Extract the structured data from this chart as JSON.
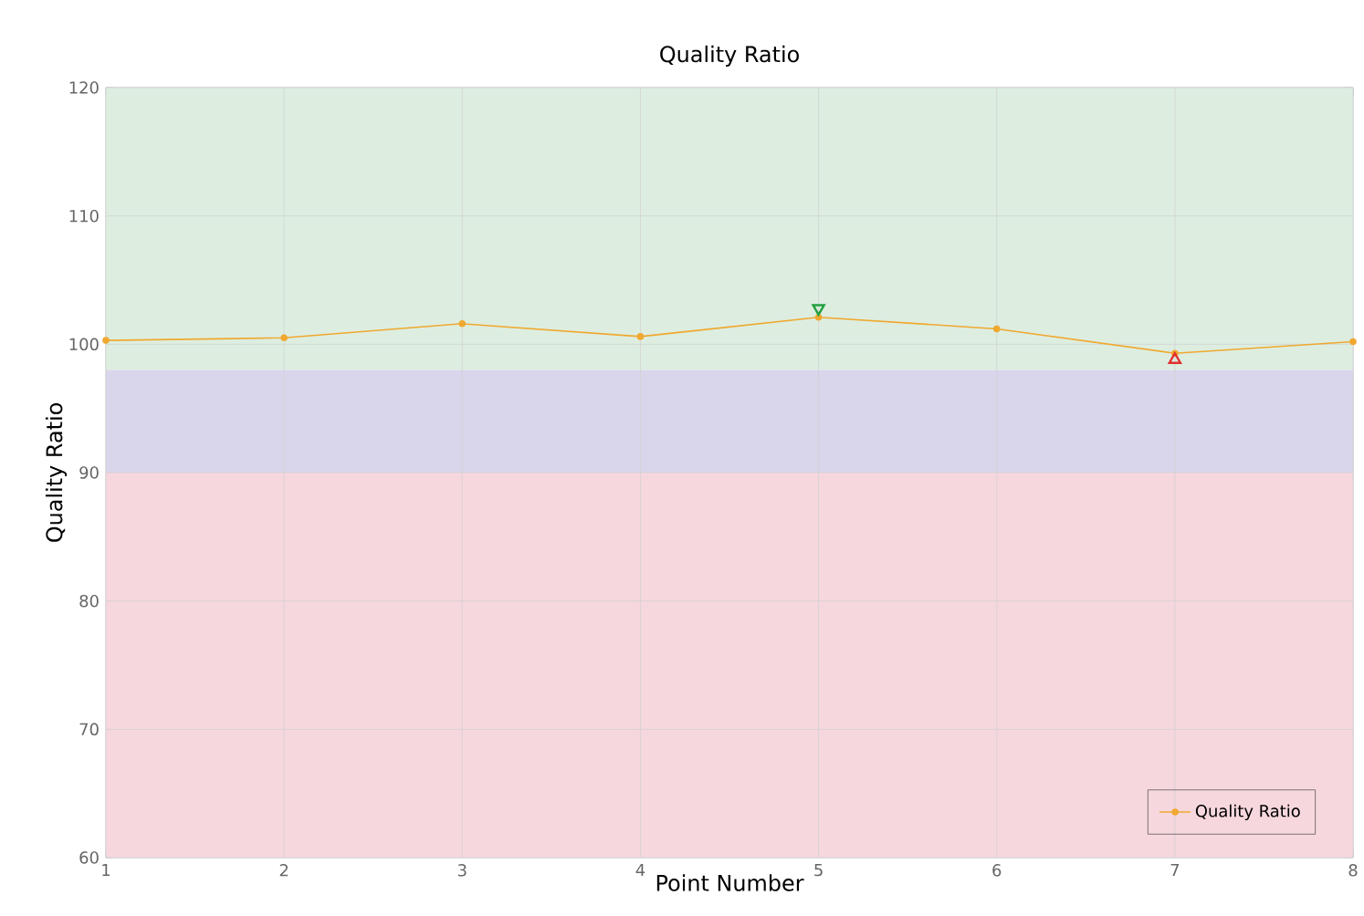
{
  "chart_data": {
    "type": "line",
    "title": "Quality Ratio",
    "xlabel": "Point Number",
    "ylabel": "Quality Ratio",
    "x": [
      1,
      2,
      3,
      4,
      5,
      6,
      7,
      8
    ],
    "series": [
      {
        "name": "Quality Ratio",
        "color": "#f0a830",
        "values": [
          100.3,
          100.5,
          101.6,
          100.6,
          102.1,
          101.2,
          99.3,
          100.2
        ]
      },
      {
        "type": "scatter",
        "marker": "triangle down",
        "color": "#22a040",
        "x": [
          5
        ],
        "values": [
          102.8
        ]
      },
      {
        "type": "scatter",
        "marker": "triangle",
        "color": "#e03030",
        "x": [
          7
        ],
        "values": [
          98.8
        ]
      }
    ],
    "xlim": [
      1,
      8
    ],
    "xticks": [
      1,
      2,
      3,
      4,
      5,
      6,
      7,
      8
    ],
    "ylim": [
      60,
      120
    ],
    "yticks": [
      60,
      70,
      80,
      90,
      100,
      110,
      120
    ],
    "bands": [
      {
        "axis": "y",
        "from": 98,
        "to": 120,
        "color": "#ddeee0"
      },
      {
        "axis": "y",
        "from": 90,
        "to": 98,
        "color": "#d9d6ec"
      },
      {
        "axis": "y",
        "from": 60,
        "to": 90,
        "color": "#f7d7de"
      }
    ],
    "grid": true,
    "legend": "bottom right",
    "marker": "circle"
  }
}
